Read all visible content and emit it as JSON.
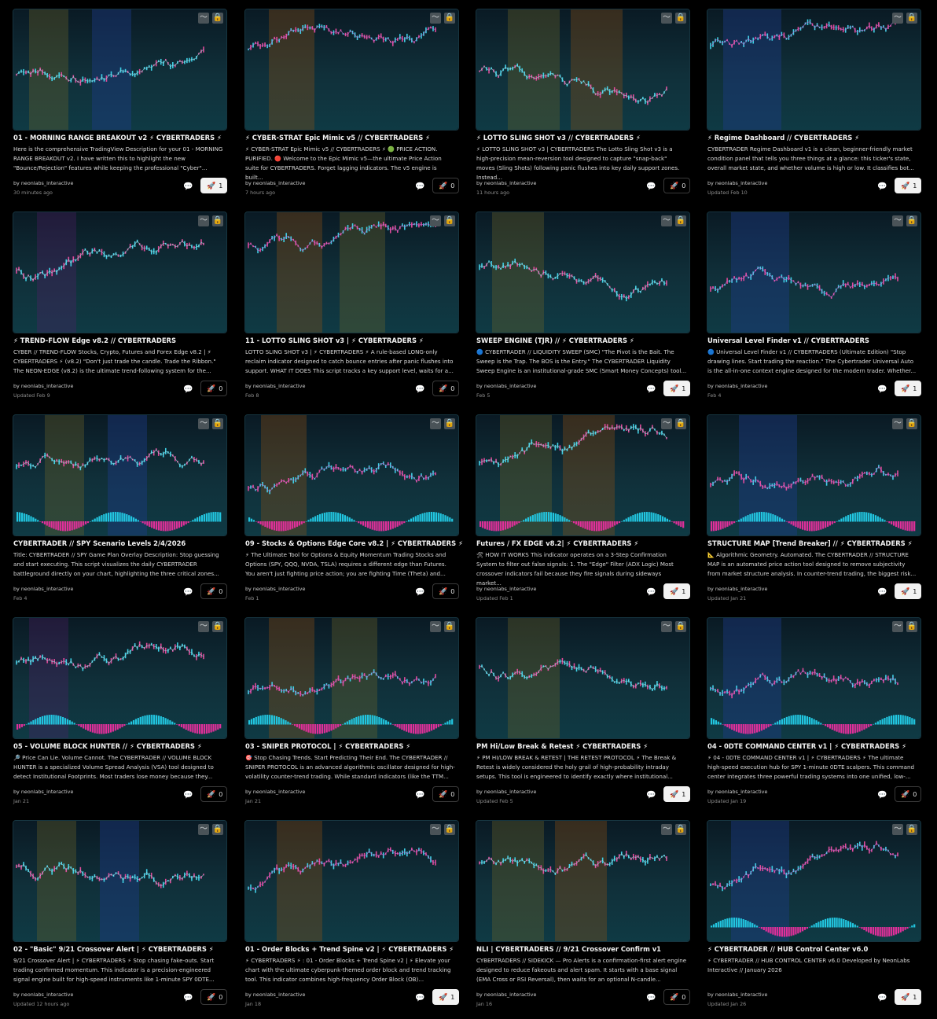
{
  "accent_boost_bg": "#f2f2f2",
  "thumb_button_icons": [
    "chart-icon",
    "lock-icon"
  ],
  "comment_icon": "comment-icon",
  "boost_icon": "rocket-icon",
  "cards": [
    {
      "title": "01 - MORNING RANGE BREAKOUT v2 ⚡ CYBERTRADERS ⚡",
      "desc": "Here is the comprehensive TradingView Description for your 01 - MORNING RANGE BREAKOUT v2. I have written this to highlight the new \"Bounce/Rejection\" features while keeping the professional \"Cyber\"...",
      "author": "by neonlabs_interactive",
      "time": "30 minutes ago",
      "boosts": "1",
      "boosted": true
    },
    {
      "title": "⚡ CYBER-STRAT Epic Mimic v5 // CYBERTRADERS ⚡",
      "desc": "⚡ CYBER-STRAT Epic Mimic v5 // CYBERTRADERS ⚡ 🟢 PRICE ACTION. PURIFIED. 🔴 Welcome to the Epic Mimic v5—the ultimate Price Action suite for CYBERTRADERS. Forget lagging indicators. The v5 engine is built...",
      "author": "by neonlabs_interactive",
      "time": "7 hours ago",
      "boosts": "0",
      "boosted": false
    },
    {
      "title": "⚡ LOTTO SLING SHOT v3 // CYBERTRADERS ⚡",
      "desc": "⚡ LOTTO SLING SHOT v3 | CYBERTRADERS The Lotto Sling Shot v3 is a high-precision mean-reversion tool designed to capture \"snap-back\" moves (Sling Shots) following panic flushes into key daily support zones. Instead...",
      "author": "by neonlabs_interactive",
      "time": "11 hours ago",
      "boosts": "0",
      "boosted": false
    },
    {
      "title": "⚡ Regime Dashboard // CYBERTRADERS ⚡",
      "desc": "CYBERTRADER Regime Dashboard v1 is a clean, beginner-friendly market condition panel that tells you three things at a glance: this ticker's state, overall market state, and whether volume is high or low. It classifies bot...",
      "author": "by neonlabs_interactive",
      "time": "Updated Feb 10",
      "boosts": "1",
      "boosted": true
    },
    {
      "title": "⚡ TREND-FLOW Edge v8.2 // CYBERTRADERS",
      "desc": "CYBER // TREND-FLOW Stocks, Crypto, Futures and Forex Edge v8.2 | ⚡ CYBERTRADERS ⚡ (v8.2) \"Don't just trade the candle. Trade the Ribbon.\" The NEON-EDGE (v8.2) is the ultimate trend-following system for the...",
      "author": "by neonlabs_interactive",
      "time": "Updated Feb 9",
      "boosts": "0",
      "boosted": false
    },
    {
      "title": "11 - LOTTO SLING SHOT v3 | ⚡ CYBERTRADERS ⚡",
      "desc": "LOTTO SLING SHOT v3 | ⚡ CYBERTRADERS ⚡ A rule-based LONG-only reclaim indicator designed to catch bounce entries after panic flushes into support. WHAT IT DOES This script tracks a key support level, waits for a...",
      "author": "by neonlabs_interactive",
      "time": "Feb 8",
      "boosts": "0",
      "boosted": false
    },
    {
      "title": "SWEEP ENGINE (TJR) // ⚡ CYBERTRADERS ⚡",
      "desc": "🔵 CYBERTRADER // LIQUIDITY SWEEP (SMC) \"The Pivot is the Bait. The Sweep is the Trap. The BOS is the Entry.\" The CYBERTRADER Liquidity Sweep Engine is an institutional-grade SMC (Smart Money Concepts) tool...",
      "author": "by neonlabs_interactive",
      "time": "Feb 5",
      "boosts": "1",
      "boosted": true
    },
    {
      "title": "Universal Level Finder v1 // CYBERTRADERS",
      "desc": "🔵 Universal Level Finder v1 // CYBERTRADERS (Ultimate Edition) \"Stop drawing lines. Start trading the reaction.\" The Cybertrader Universal Auto is the all-in-one context engine designed for the modern trader. Whether...",
      "author": "by neonlabs_interactive",
      "time": "Feb 4",
      "boosts": "1",
      "boosted": true
    },
    {
      "title": "CYBERTRADER // SPY Scenario Levels 2/4/2026",
      "desc": "Title: CYBERTRADER // SPY Game Plan Overlay Description: Stop guessing and start executing. This script visualizes the daily CYBERTRADER battleground directly on your chart, highlighting the three critical zones...",
      "author": "by neonlabs_interactive",
      "time": "Feb 4",
      "boosts": "0",
      "boosted": false
    },
    {
      "title": "09 - Stocks & Options Edge Core v8.2 | ⚡ CYBERTRADERS ⚡",
      "desc": "⚡ The Ultimate Tool for Options & Equity Momentum Trading Stocks and Options (SPY, QQQ, NVDA, TSLA) requires a different edge than Futures. You aren't just fighting price action; you are fighting Time (Theta) and...",
      "author": "by neonlabs_interactive",
      "time": "Feb 1",
      "boosts": "0",
      "boosted": false
    },
    {
      "title": "Futures / FX EDGE v8.2| ⚡ CYBERTRADERS ⚡",
      "desc": "🛠 HOW IT WORKS This indicator operates on a 3-Step Confirmation System to filter out false signals: 1. The \"Edge\" Filter (ADX Logic) Most crossover indicators fail because they fire signals during sideways market...",
      "author": "by neonlabs_interactive",
      "time": "Updated Feb 1",
      "boosts": "1",
      "boosted": true
    },
    {
      "title": "STRUCTURE MAP [Trend Breaker] // ⚡ CYBERTRADERS ⚡",
      "desc": "📐 Algorithmic Geometry. Automated. The CYBERTRADER // STRUCTURE MAP is an automated price action tool designed to remove subjectivity from market structure analysis. In counter-trend trading, the biggest risk...",
      "author": "by neonlabs_interactive",
      "time": "Updated Jan 21",
      "boosts": "1",
      "boosted": true
    },
    {
      "title": "05 - VOLUME BLOCK HUNTER // ⚡ CYBERTRADERS ⚡",
      "desc": "🔎 Price Can Lie. Volume Cannot. The CYBERTRADER // VOLUME BLOCK HUNTER is a specialized Volume Spread Analysis (VSA) tool designed to detect Institutional Footprints. Most traders lose money because they...",
      "author": "by neonlabs_interactive",
      "time": "Jan 21",
      "boosts": "0",
      "boosted": false
    },
    {
      "title": "03 - SNIPER PROTOCOL | ⚡ CYBERTRADERS ⚡",
      "desc": "🎯 Stop Chasing Trends. Start Predicting Their End. The CYBERTRADER // SNIPER PROTOCOL is an advanced algorithmic oscillator designed for high-volatility counter-trend trading. While standard indicators (like the TTM...",
      "author": "by neonlabs_interactive",
      "time": "Jan 21",
      "boosts": "0",
      "boosted": false
    },
    {
      "title": "PM Hi/Low Break & Retest ⚡ CYBERTRADERS ⚡",
      "desc": "⚡ PM HI/LOW BREAK & RETEST | THE RETEST PROTOCOL ⚡ The Break & Retest is widely considered the holy grail of high-probability intraday setups. This tool is engineered to identify exactly where institutional...",
      "author": "by neonlabs_interactive",
      "time": "Updated Feb 5",
      "boosts": "1",
      "boosted": true
    },
    {
      "title": "04 - 0DTE COMMAND CENTER v1 | ⚡ CYBERTRADERS ⚡",
      "desc": "⚡ 04 - 0DTE COMMAND CENTER v1 | ⚡ CYBERTRADERS ⚡ The ultimate high-speed execution hub for SPY 1-minute 0DTE scalpers. This command center integrates three powerful trading systems into one unified, low-...",
      "author": "by neonlabs_interactive",
      "time": "Updated Jan 19",
      "boosts": "0",
      "boosted": false
    },
    {
      "title": "02 - \"Basic\" 9/21 Crossover Alert | ⚡ CYBERTRADERS ⚡",
      "desc": "9/21 Crossover Alert | ⚡ CYBERTRADERS ⚡ Stop chasing fake-outs. Start trading confirmed momentum. This indicator is a precision-engineered signal engine built for high-speed instruments like 1-minute SPY 0DTE...",
      "author": "by neonlabs_interactive",
      "time": "Updated 12 hours ago",
      "boosts": "0",
      "boosted": false
    },
    {
      "title": "01 - Order Blocks + Trend Spine v2 | ⚡ CYBERTRADERS ⚡",
      "desc": "⚡ CYBERTRADERS ⚡ : 01 - Order Blocks + Trend Spine v2 | ⚡ Elevate your chart with the ultimate cyberpunk-themed order block and trend tracking tool. This indicator combines high-frequency Order Block (OB)...",
      "author": "by neonlabs_interactive",
      "time": "Jan 18",
      "boosts": "1",
      "boosted": true
    },
    {
      "title": "NLI | CYBERTRADERS // 9/21 Crossover Confirm v1",
      "desc": "CYBERTRADERS // SIDEKICK — Pro Alerts is a confirmation-first alert engine designed to reduce fakeouts and alert spam. It starts with a base signal (EMA Cross or RSI Reversal), then waits for an optional N-candle...",
      "author": "by neonlabs_interactive",
      "time": "Jan 16",
      "boosts": "0",
      "boosted": false
    },
    {
      "title": "⚡ CYBERTRADER // HUB Control Center v6.0",
      "desc": "⚡ CYBERTRADER // HUB CONTROL CENTER v6.0 Developed by NeonLabs Interactive // January 2026",
      "author": "by neonlabs_interactive",
      "time": "Updated Jan 26",
      "boosts": "1",
      "boosted": true
    }
  ]
}
